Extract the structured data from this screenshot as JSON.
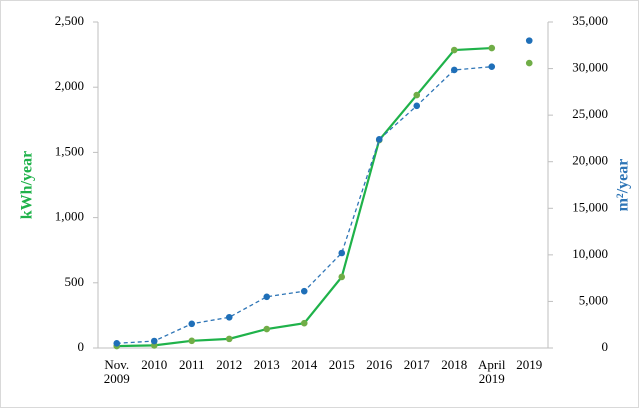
{
  "chart_data": {
    "type": "line",
    "categories": [
      "Nov. 2009",
      "2010",
      "2011",
      "2012",
      "2013",
      "2014",
      "2015",
      "2016",
      "2017",
      "2018",
      "April 2019",
      "2019"
    ],
    "series": [
      {
        "name": "kWh/year",
        "color": "#1fb24a",
        "marker_color": "#70ad47",
        "dash": false,
        "axis": "y",
        "values": [
          15,
          20,
          55,
          70,
          145,
          190,
          545,
          1595,
          1940,
          2285,
          2300,
          2185
        ]
      },
      {
        "name": "m²/year",
        "color": "#2e75b6",
        "marker_color": "#1f6fb8",
        "dash": true,
        "axis": "y2",
        "values": [
          500,
          750,
          2600,
          3300,
          5500,
          6100,
          10200,
          22400,
          26000,
          29850,
          30200,
          33000
        ]
      }
    ],
    "connect_last": false,
    "ylabel": "kWh/year",
    "y2label": "m²/year",
    "ylim": [
      0,
      2500
    ],
    "yticks": [
      0,
      500,
      {
        "value": 1000,
        "label": "1,000"
      },
      {
        "value": 1500,
        "label": "1,500"
      },
      {
        "value": 2000,
        "label": "2,000"
      },
      {
        "value": 2500,
        "label": "2,500"
      }
    ],
    "y2lim": [
      0,
      35000
    ],
    "y2ticks": [
      0,
      {
        "value": 5000,
        "label": "5,000"
      },
      {
        "value": 10000,
        "label": "10,000"
      },
      {
        "value": 15000,
        "label": "15,000"
      },
      {
        "value": 20000,
        "label": "20,000"
      },
      {
        "value": 25000,
        "label": "25,000"
      },
      {
        "value": 30000,
        "label": "30,000"
      },
      {
        "value": 35000,
        "label": "35,000"
      }
    ]
  }
}
